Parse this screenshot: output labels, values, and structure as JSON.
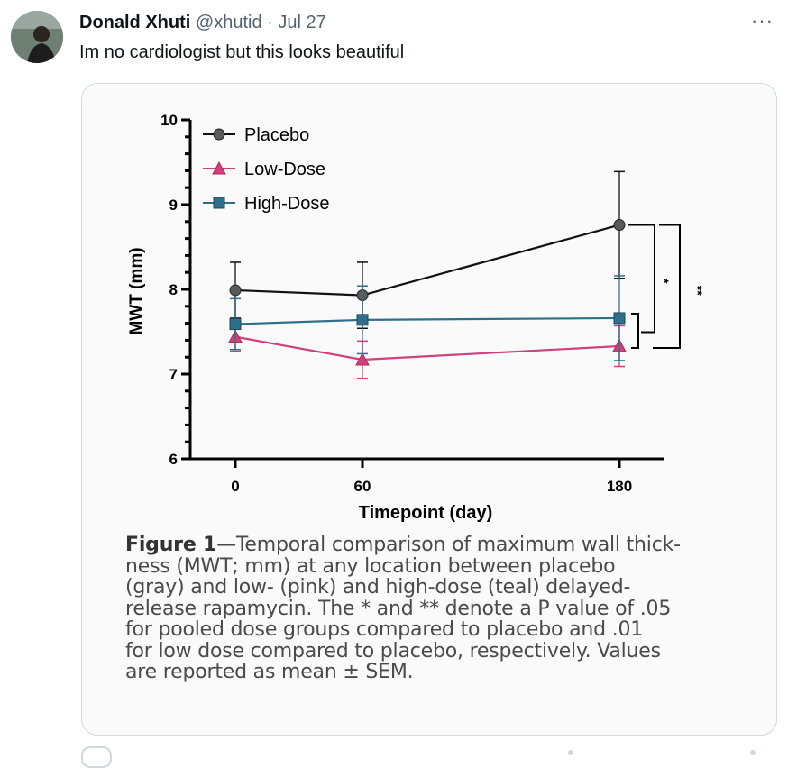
{
  "tweet": {
    "author_name": "Donald Xhuti",
    "handle": "@xhutid",
    "separator": "·",
    "date": "Jul 27",
    "more_icon": "ellipsis-icon",
    "text": "Im no cardiologist but this looks beautiful"
  },
  "chart_data": {
    "type": "line",
    "xlabel": "Timepoint (day)",
    "ylabel": "MWT (mm)",
    "x": [
      0,
      60,
      180
    ],
    "x_ticks": [
      "0",
      "60",
      "180"
    ],
    "y_ticks": [
      "6",
      "7",
      "8",
      "9",
      "10"
    ],
    "ylim": [
      6,
      10
    ],
    "legend_position": "top-left",
    "series": [
      {
        "name": "Placebo",
        "color": "#5a5a5a",
        "line_color": "#111111",
        "marker": "circle",
        "values": [
          7.99,
          7.93,
          8.76
        ],
        "err": [
          0.33,
          0.39,
          0.63
        ]
      },
      {
        "name": "Low-Dose",
        "color": "#d0407a",
        "line_color": "#d0407a",
        "marker": "triangle",
        "values": [
          7.44,
          7.17,
          7.33
        ],
        "err": [
          0.17,
          0.22,
          0.24
        ]
      },
      {
        "name": "High-Dose",
        "color": "#2e6f8a",
        "line_color": "#2e6f8a",
        "marker": "square",
        "values": [
          7.59,
          7.64,
          7.66
        ],
        "err": [
          0.3,
          0.4,
          0.5
        ]
      }
    ],
    "significance": [
      "*",
      "**"
    ]
  },
  "caption": {
    "title": "Figure 1",
    "lines": [
      "—Temporal comparison of maximum wall thick-",
      "ness (MWT; mm) at any location between placebo",
      "(gray) and low- (pink) and high-dose (teal) delayed-",
      "release rapamycin. The * and ** denote a P value of .05",
      "for pooled dose groups compared to placebo and .01",
      "for low dose compared to placebo, respectively. Values",
      "are reported as mean ± SEM."
    ]
  }
}
